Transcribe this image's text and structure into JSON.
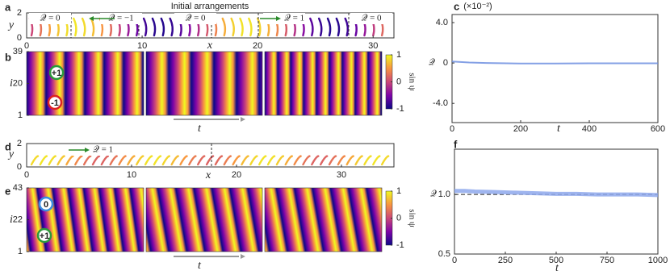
{
  "chart_data": [
    {
      "type": "strip",
      "label": "a",
      "title": "Initial arrangements",
      "x_label": "x",
      "y_label": "y",
      "xlim": [
        0,
        31.8
      ],
      "xticks": [
        0,
        10,
        20,
        30
      ],
      "ylim": [
        0,
        2
      ],
      "yticks": [
        0,
        2
      ],
      "annotations": [
        "𝒬 = 0",
        "𝒬 = −1",
        "𝒬 = 0",
        "𝒬 = 1",
        "𝒬 = 0"
      ]
    },
    {
      "type": "heatmap",
      "label": "b",
      "x_label": "t",
      "y_label": "i",
      "ylim": [
        1,
        39
      ],
      "yticks": [
        1,
        20,
        39
      ],
      "colorbar_label": "sin ψ",
      "colorbar_lim": [
        -1,
        1
      ],
      "colorbar_ticks": [
        -1,
        0,
        1
      ],
      "annotations": [
        "+1",
        "-1"
      ]
    },
    {
      "type": "line",
      "label": "c",
      "x_label": "t",
      "y_label": "𝒬",
      "y_multiplier": "(×10⁻²)",
      "xlim": [
        0,
        600
      ],
      "xticks": [
        0,
        200,
        400,
        600
      ],
      "ylim": [
        -5.9,
        4.8
      ],
      "yticks": [
        {
          "value": -4,
          "label": "-4.0"
        },
        0,
        {
          "value": 4,
          "label": "4.0"
        }
      ],
      "series": [
        {
          "color": "#6f8fe0",
          "x": [
            0,
            25,
            50,
            100,
            200,
            300,
            400,
            500,
            600
          ],
          "values": [
            0.15,
            0.1,
            0.05,
            0,
            -0.05,
            -0.05,
            -0.03,
            -0.03,
            -0.03
          ]
        }
      ]
    },
    {
      "type": "strip",
      "label": "d",
      "x_label": "x",
      "y_label": "y",
      "xlim": [
        0,
        35
      ],
      "xticks": [
        0,
        10,
        20,
        30
      ],
      "ylim": [
        0,
        2
      ],
      "yticks": [
        0,
        2
      ],
      "annotations": [
        "𝒬 = 1"
      ]
    },
    {
      "type": "heatmap",
      "label": "e",
      "x_label": "t",
      "y_label": "i",
      "ylim": [
        1,
        43
      ],
      "yticks": [
        1,
        22,
        43
      ],
      "colorbar_label": "sin ψ",
      "colorbar_lim": [
        -1,
        1
      ],
      "colorbar_ticks": [
        -1,
        0,
        1
      ],
      "annotations": [
        "0",
        "+1"
      ]
    },
    {
      "type": "line",
      "label": "f",
      "x_label": "t",
      "y_label": "𝒬",
      "xlim": [
        0,
        1000
      ],
      "xticks": [
        0,
        250,
        500,
        750,
        1000
      ],
      "ylim": [
        0.5,
        1.38
      ],
      "yticks": [
        0.5,
        {
          "value": 1,
          "label": "1.0"
        }
      ],
      "reference": 1,
      "series": [
        {
          "color": "#8ea8ec",
          "x": [
            0,
            50,
            100,
            200,
            300,
            400,
            500,
            600,
            700,
            800,
            900,
            1000
          ],
          "values": [
            1.03,
            1.03,
            1.025,
            1.02,
            1.015,
            1.01,
            1.005,
            1.005,
            1.0,
            1.0,
            1.0,
            0.995
          ]
        }
      ]
    }
  ]
}
